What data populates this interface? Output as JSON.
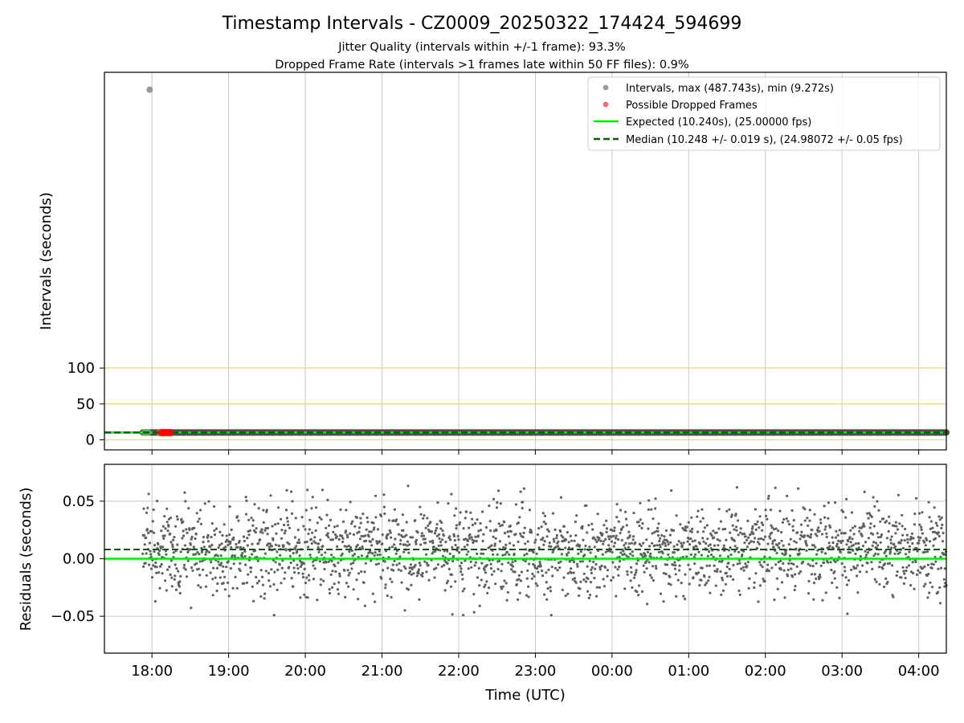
{
  "title": "Timestamp Intervals - CZ0009_20250322_174424_594699",
  "subtitle1": "Jitter Quality (intervals within +/-1 frame): 93.3%",
  "subtitle2": "Dropped Frame Rate (intervals >1 frames late within 50 FF files): 0.9%",
  "colors": {
    "intervals": "#999999",
    "dropped": "#ff0000",
    "expected": "#00ee00",
    "median": "#006400",
    "threshold": "#f5d27a",
    "grid": "#c8c8c8",
    "residual_points": "#606060"
  },
  "chart_data": [
    {
      "type": "scatter",
      "ylabel": "Intervals (seconds)",
      "y_ticks": [
        0,
        50,
        100
      ],
      "y_tick_labels": [
        "0",
        "50",
        "100"
      ],
      "ylim": [
        -14,
        512
      ],
      "x_ticks": [
        "18:00",
        "19:00",
        "20:00",
        "21:00",
        "22:00",
        "23:00",
        "00:00",
        "01:00",
        "02:00",
        "03:00",
        "04:00"
      ],
      "xlim_hours": [
        17.38,
        28.36
      ],
      "grid": "x-only",
      "threshold_lines": [
        0,
        50,
        100
      ],
      "legend_position": "upper right",
      "legend": [
        "Intervals, max (487.743s), min (9.272s)",
        "Possible Dropped Frames",
        "Expected (10.240s), (25.00000 fps)",
        "Median (10.248 +/- 0.019 s), (24.98072 +/- 0.05 fps)"
      ],
      "expected_value": 10.24,
      "median_value": 10.248,
      "outlier": {
        "t_hours": 17.97,
        "value": 487.743
      },
      "dropped_frames": [
        {
          "t_hours": 18.12,
          "value": 10.0
        },
        {
          "t_hours": 18.15,
          "value": 10.0
        },
        {
          "t_hours": 18.18,
          "value": 10.0
        },
        {
          "t_hours": 18.21,
          "value": 10.0
        },
        {
          "t_hours": 18.24,
          "value": 10.0
        }
      ],
      "interval_band": {
        "t_start_hours": 17.88,
        "t_end_hours": 28.36,
        "value": 10.248
      },
      "early_points": [
        {
          "t_hours": 17.9,
          "value": 10.0
        },
        {
          "t_hours": 17.95,
          "value": 10.0
        },
        {
          "t_hours": 18.1,
          "value": 10.0
        }
      ]
    },
    {
      "type": "scatter",
      "ylabel": "Residuals (seconds)",
      "xlabel": "Time (UTC)",
      "y_ticks": [
        -0.05,
        0.0,
        0.05
      ],
      "y_tick_labels": [
        "−0.05",
        "0.00",
        "0.05"
      ],
      "ylim": [
        -0.082,
        0.082
      ],
      "x_ticks": [
        "18:00",
        "19:00",
        "20:00",
        "21:00",
        "22:00",
        "23:00",
        "00:00",
        "01:00",
        "02:00",
        "03:00",
        "04:00"
      ],
      "xlim_hours": [
        17.38,
        28.36
      ],
      "grid": "both",
      "expected_residual": 0.0,
      "median_residual": 0.008,
      "residual_series": {
        "t_start_hours": 17.88,
        "t_end_hours": 28.36,
        "count": 2300,
        "center": 0.008,
        "spread": 0.019,
        "min": -0.049,
        "max": 0.066
      }
    }
  ]
}
